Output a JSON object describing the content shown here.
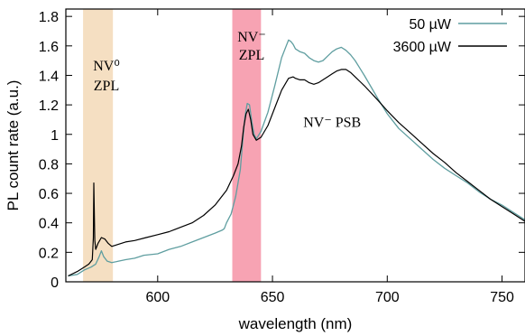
{
  "chart_data": {
    "type": "line",
    "xlabel": "wavelength (nm)",
    "ylabel": "PL count rate (a.u.)",
    "xlim": [
      560,
      760
    ],
    "ylim": [
      0,
      1.85
    ],
    "x_ticks": [
      600,
      650,
      700,
      750
    ],
    "x_tick_labels": [
      "600",
      "650",
      "700",
      "750"
    ],
    "y_ticks": [
      0,
      0.2,
      0.4,
      0.6,
      0.8,
      1.0,
      1.2,
      1.4,
      1.6,
      1.8
    ],
    "y_tick_labels": [
      "0",
      "0.2",
      "0.4",
      "0.6",
      "0.8",
      "1",
      "1.2",
      "1.4",
      "1.6",
      "1.8"
    ],
    "grid": false,
    "legend_position": "top-right",
    "shaded_regions": [
      {
        "x": [
          567.5,
          580.5
        ],
        "color": "#f5dfc2",
        "label_lines": [
          "NV⁰",
          "ZPL"
        ]
      },
      {
        "x": [
          632.5,
          645.0
        ],
        "color": "#f7a3b3",
        "label_lines": [
          "NV⁻",
          "ZPL"
        ]
      }
    ],
    "annotations": [
      {
        "text": "NV⁻ PSB",
        "x": 676,
        "y": 1.05
      }
    ],
    "series": [
      {
        "name": "50 µW",
        "color": "#5f9ea0",
        "x": [
          561,
          565,
          568,
          571,
          573,
          574.5,
          575.5,
          576.5,
          578,
          580,
          583,
          586,
          590,
          594,
          600,
          605,
          610,
          615,
          620,
          625,
          628,
          629,
          630,
          632,
          634,
          636,
          637,
          638,
          639,
          640,
          641,
          642,
          643,
          645,
          648,
          651,
          654,
          656,
          657,
          658,
          659,
          660,
          662,
          664,
          666,
          668,
          670,
          672,
          674,
          676,
          678,
          680,
          682,
          684,
          686,
          688,
          690,
          693,
          696,
          700,
          705,
          710,
          715,
          720,
          725,
          730,
          735,
          740,
          745,
          750,
          755,
          760
        ],
        "y": [
          0.04,
          0.05,
          0.08,
          0.1,
          0.12,
          0.17,
          0.21,
          0.17,
          0.14,
          0.13,
          0.14,
          0.15,
          0.16,
          0.18,
          0.19,
          0.22,
          0.24,
          0.27,
          0.3,
          0.33,
          0.35,
          0.36,
          0.4,
          0.46,
          0.58,
          0.76,
          0.95,
          1.12,
          1.21,
          1.2,
          1.09,
          1.0,
          0.97,
          1.02,
          1.15,
          1.33,
          1.52,
          1.6,
          1.64,
          1.63,
          1.61,
          1.58,
          1.56,
          1.55,
          1.52,
          1.5,
          1.49,
          1.5,
          1.53,
          1.56,
          1.58,
          1.59,
          1.57,
          1.54,
          1.5,
          1.45,
          1.4,
          1.32,
          1.24,
          1.14,
          1.04,
          0.97,
          0.9,
          0.83,
          0.77,
          0.72,
          0.67,
          0.61,
          0.56,
          0.52,
          0.47,
          0.42
        ]
      },
      {
        "name": "3600 µW",
        "color": "#000000",
        "x": [
          561,
          565,
          568,
          570,
          571.5,
          572,
          572.2,
          572.6,
          573,
          574,
          575.5,
          577,
          578.5,
          580,
          582,
          586,
          590,
          595,
          600,
          605,
          610,
          615,
          620,
          625,
          630,
          633,
          635,
          636.5,
          637.5,
          638.5,
          639.5,
          640.5,
          641.5,
          643,
          645,
          648,
          651,
          654,
          657,
          659,
          660,
          662,
          664,
          666,
          668,
          670,
          672,
          674,
          676,
          678,
          680,
          682,
          684,
          686,
          688,
          690,
          693,
          696,
          700,
          705,
          710,
          715,
          720,
          725,
          730,
          735,
          740,
          745,
          750,
          755,
          760
        ],
        "y": [
          0.04,
          0.07,
          0.1,
          0.12,
          0.15,
          0.3,
          0.67,
          0.28,
          0.22,
          0.26,
          0.3,
          0.29,
          0.26,
          0.24,
          0.25,
          0.27,
          0.28,
          0.3,
          0.32,
          0.34,
          0.37,
          0.4,
          0.45,
          0.52,
          0.62,
          0.72,
          0.8,
          0.92,
          1.05,
          1.14,
          1.17,
          1.1,
          1.0,
          0.96,
          0.98,
          1.06,
          1.18,
          1.3,
          1.38,
          1.39,
          1.38,
          1.37,
          1.37,
          1.35,
          1.34,
          1.35,
          1.37,
          1.39,
          1.41,
          1.43,
          1.44,
          1.44,
          1.42,
          1.39,
          1.36,
          1.33,
          1.28,
          1.23,
          1.16,
          1.08,
          1.01,
          0.94,
          0.87,
          0.81,
          0.74,
          0.68,
          0.62,
          0.56,
          0.51,
          0.46,
          0.41
        ]
      }
    ]
  }
}
